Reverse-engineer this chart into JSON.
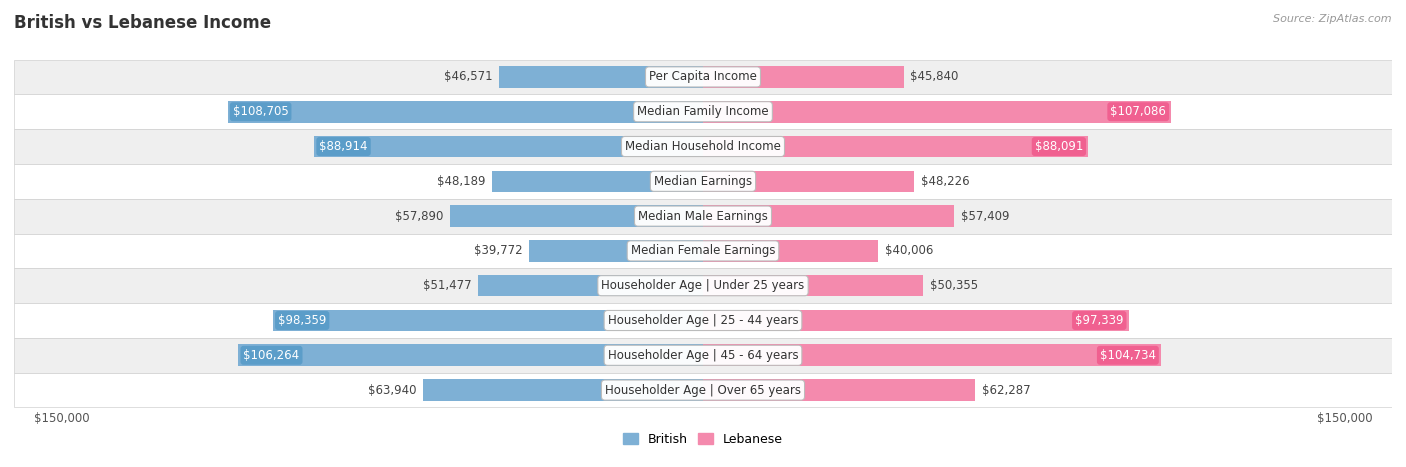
{
  "title": "British vs Lebanese Income",
  "source": "Source: ZipAtlas.com",
  "categories": [
    "Per Capita Income",
    "Median Family Income",
    "Median Household Income",
    "Median Earnings",
    "Median Male Earnings",
    "Median Female Earnings",
    "Householder Age | Under 25 years",
    "Householder Age | 25 - 44 years",
    "Householder Age | 45 - 64 years",
    "Householder Age | Over 65 years"
  ],
  "british_values": [
    46571,
    108705,
    88914,
    48189,
    57890,
    39772,
    51477,
    98359,
    106264,
    63940
  ],
  "lebanese_values": [
    45840,
    107086,
    88091,
    48226,
    57409,
    40006,
    50355,
    97339,
    104734,
    62287
  ],
  "british_labels": [
    "$46,571",
    "$108,705",
    "$88,914",
    "$48,189",
    "$57,890",
    "$39,772",
    "$51,477",
    "$98,359",
    "$106,264",
    "$63,940"
  ],
  "lebanese_labels": [
    "$45,840",
    "$107,086",
    "$88,091",
    "$48,226",
    "$57,409",
    "$40,006",
    "$50,355",
    "$97,339",
    "$104,734",
    "$62,287"
  ],
  "british_bar_color": "#7eb0d5",
  "lebanese_bar_color": "#f48aad",
  "british_label_bg": "#5b9dc9",
  "lebanese_label_bg": "#f06090",
  "max_value": 150000,
  "bar_height": 0.62,
  "bg_row_colors": [
    "#efefef",
    "#ffffff",
    "#efefef",
    "#ffffff",
    "#efefef",
    "#ffffff",
    "#efefef",
    "#ffffff",
    "#efefef",
    "#ffffff"
  ],
  "title_fontsize": 12,
  "label_fontsize": 8.5,
  "category_fontsize": 8.5,
  "threshold_inside": 75000,
  "row_border_color": "#d0d0d0",
  "label_dark_color": "#444444",
  "label_white_color": "#ffffff"
}
